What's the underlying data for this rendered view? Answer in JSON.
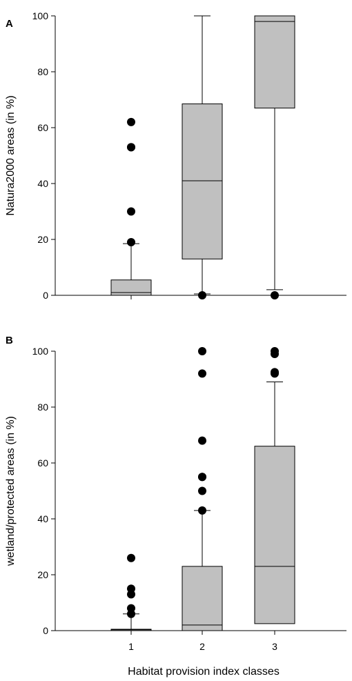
{
  "chart_data": [
    {
      "type": "box",
      "panel_label": "A",
      "ylabel": "Natura2000 areas (in %)",
      "xlabel": "",
      "ylim": [
        0,
        100
      ],
      "yticks": [
        0,
        20,
        40,
        60,
        80,
        100
      ],
      "categories": [
        "1",
        "2",
        "3"
      ],
      "show_xtick_labels": false,
      "box_color": "#c0c0c0",
      "boxes": [
        {
          "category": "1",
          "whisker_low": 0,
          "q1": 0,
          "median": 1,
          "q3": 5.5,
          "whisker_high": 18.5,
          "outliers": [
            19,
            30,
            53,
            53,
            62
          ]
        },
        {
          "category": "2",
          "whisker_low": 0.5,
          "q1": 13,
          "median": 41,
          "q3": 68.5,
          "whisker_high": 100,
          "outliers": [
            0
          ]
        },
        {
          "category": "3",
          "whisker_low": 2,
          "q1": 67,
          "median": 98,
          "q3": 100,
          "whisker_high": 100,
          "outliers": [
            0
          ]
        }
      ]
    },
    {
      "type": "box",
      "panel_label": "B",
      "ylabel": "wetland/protected areas (in %)",
      "xlabel": "Habitat provision index classes",
      "ylim": [
        0,
        100
      ],
      "yticks": [
        0,
        20,
        40,
        60,
        80,
        100
      ],
      "categories": [
        "1",
        "2",
        "3"
      ],
      "show_xtick_labels": true,
      "box_color": "#c0c0c0",
      "boxes": [
        {
          "category": "1",
          "whisker_low": 0,
          "q1": 0,
          "median": 0.3,
          "q3": 0.5,
          "whisker_high": 6,
          "outliers": [
            6,
            8,
            13,
            15,
            26
          ]
        },
        {
          "category": "2",
          "whisker_low": 0,
          "q1": 0,
          "median": 2,
          "q3": 23,
          "whisker_high": 43,
          "outliers": [
            43,
            50,
            55,
            55,
            68,
            92,
            100
          ]
        },
        {
          "category": "3",
          "whisker_low": 2.5,
          "q1": 2.5,
          "median": 23,
          "q3": 66,
          "whisker_high": 89,
          "outliers": [
            92,
            92.5,
            99,
            100
          ]
        }
      ]
    }
  ]
}
